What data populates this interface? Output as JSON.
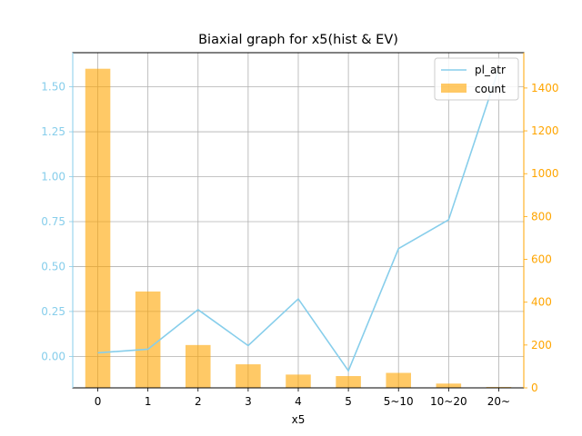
{
  "chart_data": {
    "type": "bar+line",
    "title": "Biaxial graph for x5(hist & EV)",
    "xlabel": "x5",
    "categories": [
      "0",
      "1",
      "2",
      "3",
      "4",
      "5",
      "5~10",
      "10~20",
      "20~"
    ],
    "series": [
      {
        "name": "pl_atr",
        "type": "line",
        "axis": "left",
        "color": "#87ceeb",
        "values": [
          0.02,
          0.04,
          0.26,
          0.06,
          0.32,
          -0.08,
          0.6,
          0.76,
          1.6
        ]
      },
      {
        "name": "count",
        "type": "bar",
        "axis": "right",
        "color": "#ffa500",
        "values": [
          1490,
          450,
          200,
          110,
          62,
          55,
          70,
          20,
          4
        ]
      }
    ],
    "left_axis": {
      "ylim": [
        -0.175,
        1.69
      ],
      "ticks": [
        "0.00",
        "0.25",
        "0.50",
        "0.75",
        "1.00",
        "1.25",
        "1.50"
      ],
      "tick_values": [
        0,
        0.25,
        0.5,
        0.75,
        1.0,
        1.25,
        1.5
      ],
      "color": "#87ceeb"
    },
    "right_axis": {
      "ylim": [
        0,
        1565
      ],
      "ticks": [
        "0",
        "200",
        "400",
        "600",
        "800",
        "1000",
        "1200",
        "1400"
      ],
      "tick_values": [
        0,
        200,
        400,
        600,
        800,
        1000,
        1200,
        1400
      ],
      "color": "#ffa500"
    },
    "grid": true,
    "legend_position": "top-right"
  }
}
